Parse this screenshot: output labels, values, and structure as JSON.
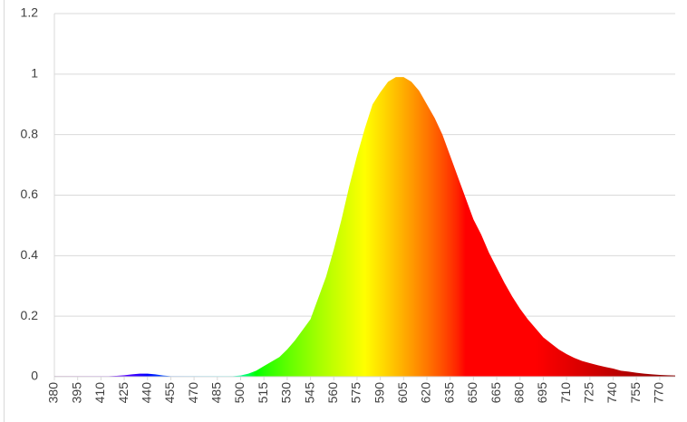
{
  "chart_data": {
    "type": "area",
    "x": [
      380,
      385,
      390,
      395,
      400,
      405,
      410,
      415,
      420,
      425,
      430,
      435,
      440,
      445,
      450,
      455,
      460,
      465,
      470,
      475,
      480,
      485,
      490,
      495,
      500,
      505,
      510,
      515,
      520,
      525,
      530,
      535,
      540,
      545,
      550,
      555,
      560,
      565,
      570,
      575,
      580,
      585,
      590,
      595,
      600,
      605,
      610,
      615,
      620,
      625,
      630,
      635,
      640,
      645,
      650,
      655,
      660,
      665,
      670,
      675,
      680,
      685,
      690,
      695,
      700,
      705,
      710,
      715,
      720,
      725,
      730,
      735,
      740,
      745,
      750,
      755,
      760,
      765,
      770,
      775,
      780
    ],
    "values": [
      0.002,
      0.002,
      0.002,
      0.002,
      0.002,
      0.002,
      0.002,
      0.002,
      0.003,
      0.005,
      0.008,
      0.01,
      0.01,
      0.008,
      0.004,
      0.002,
      0.002,
      0.002,
      0.002,
      0.002,
      0.002,
      0.002,
      0.002,
      0.002,
      0.004,
      0.01,
      0.02,
      0.035,
      0.05,
      0.065,
      0.09,
      0.12,
      0.155,
      0.19,
      0.26,
      0.33,
      0.42,
      0.52,
      0.63,
      0.73,
      0.82,
      0.9,
      0.94,
      0.975,
      0.99,
      0.99,
      0.975,
      0.945,
      0.9,
      0.855,
      0.8,
      0.73,
      0.66,
      0.59,
      0.52,
      0.47,
      0.41,
      0.36,
      0.31,
      0.265,
      0.225,
      0.19,
      0.16,
      0.13,
      0.11,
      0.09,
      0.075,
      0.062,
      0.052,
      0.045,
      0.038,
      0.032,
      0.027,
      0.02,
      0.017,
      0.013,
      0.01,
      0.008,
      0.006,
      0.005,
      0.004
    ],
    "xlim": [
      380,
      780
    ],
    "xticks": [
      380,
      395,
      410,
      425,
      440,
      455,
      470,
      485,
      500,
      515,
      530,
      545,
      560,
      575,
      590,
      605,
      620,
      635,
      650,
      665,
      680,
      695,
      710,
      725,
      740,
      755,
      770
    ],
    "ylim": [
      0,
      1.2
    ],
    "yticks": [
      0,
      0.2,
      0.4,
      0.6,
      0.8,
      1,
      1.2
    ],
    "grid": true,
    "fill": "spectrum"
  }
}
